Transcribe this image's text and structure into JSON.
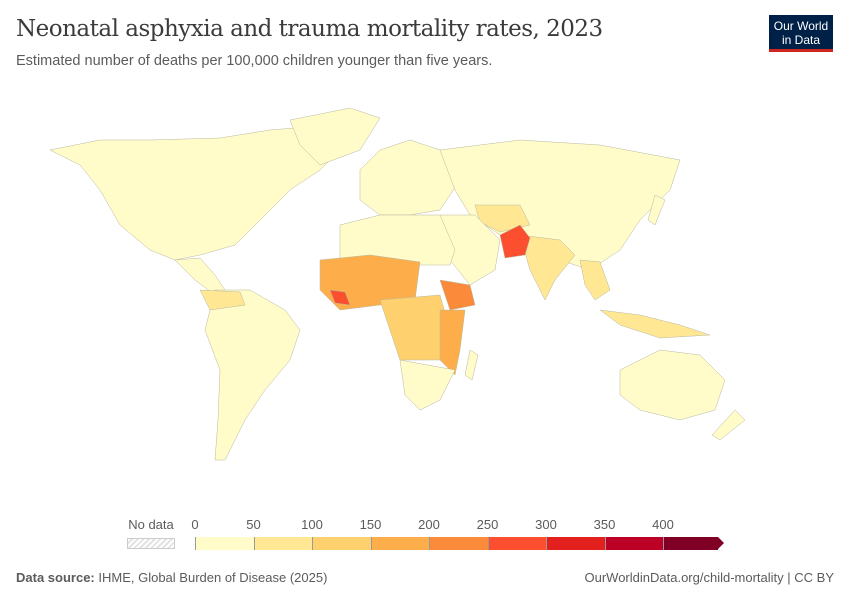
{
  "header": {
    "title": "Neonatal asphyxia and trauma mortality rates, 2023",
    "subtitle": "Estimated number of deaths per 100,000 children younger than five years.",
    "logo_line1": "Our World",
    "logo_line2": "in Data"
  },
  "legend": {
    "no_data_label": "No data",
    "ticks": [
      "0",
      "50",
      "100",
      "150",
      "200",
      "250",
      "300",
      "350",
      "400"
    ],
    "bin_colors": [
      "#fffcc9",
      "#ffe793",
      "#ffd16e",
      "#fdae4a",
      "#fb8a3b",
      "#fb4f2f",
      "#e2211f",
      "#bd0026",
      "#800026"
    ]
  },
  "footer": {
    "source_label": "Data source:",
    "source": "IHME, Global Burden of Disease (2025)",
    "url": "OurWorldinData.org/child-mortality | CC BY"
  }
}
